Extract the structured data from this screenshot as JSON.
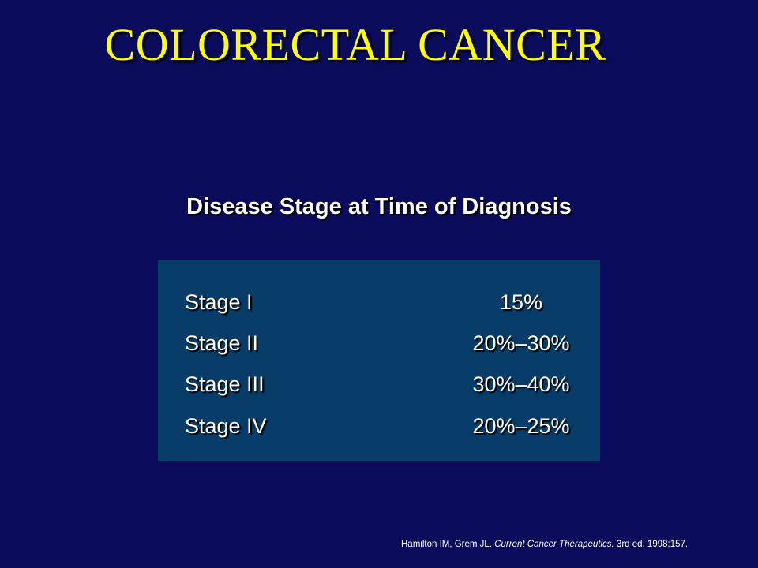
{
  "slide": {
    "title": "COLORECTAL CANCER",
    "subtitle": "Disease Stage at Time of Diagnosis"
  },
  "stages_table": {
    "rows": [
      {
        "stage": "Stage I",
        "percent": "15%"
      },
      {
        "stage": "Stage II",
        "percent": "20%–30%"
      },
      {
        "stage": "Stage III",
        "percent": "30%–40%"
      },
      {
        "stage": "Stage IV",
        "percent": "20%–25%"
      }
    ]
  },
  "citation": {
    "authors": "Hamilton IM, Grem JL.",
    "work": "Current Cancer Therapeutics.",
    "details": "3rd ed. 1998;157."
  },
  "colors": {
    "background": "#0b0b5c",
    "title": "#ffff00",
    "table_background": "#083c68",
    "text": "#ffffff"
  }
}
